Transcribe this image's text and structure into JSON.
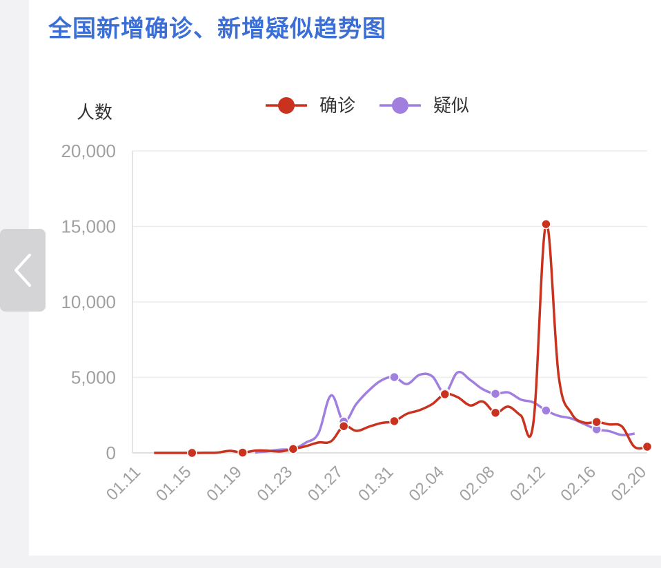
{
  "title": "全国新增确诊、新增疑似趋势图",
  "nav": {
    "prev_icon": "chevron-left-icon"
  },
  "chart_data": {
    "type": "line",
    "ylabel": "人数",
    "ylim": [
      0,
      20000
    ],
    "yticks": [
      0,
      5000,
      10000,
      15000,
      20000
    ],
    "ytick_labels": [
      "0",
      "5,000",
      "10,000",
      "15,000",
      "20,000"
    ],
    "xtick_labels": [
      "01.11",
      "01.15",
      "01.19",
      "01.23",
      "01.27",
      "01.31",
      "02.04",
      "02.08",
      "02.12",
      "02.16",
      "02.20"
    ],
    "legend_position": "top-center",
    "grid": true,
    "series": [
      {
        "name": "确诊",
        "color": "#c8321e",
        "x": [
          "01.12",
          "01.13",
          "01.14",
          "01.15",
          "01.16",
          "01.17",
          "01.18",
          "01.19",
          "01.20",
          "01.21",
          "01.22",
          "01.23",
          "01.24",
          "01.25",
          "01.26",
          "01.27",
          "01.28",
          "01.29",
          "01.30",
          "01.31",
          "02.01",
          "02.02",
          "02.03",
          "02.04",
          "02.05",
          "02.06",
          "02.07",
          "02.08",
          "02.09",
          "02.10",
          "02.11",
          "02.12",
          "02.13",
          "02.14",
          "02.15",
          "02.16",
          "02.17",
          "02.18",
          "02.19",
          "02.20"
        ],
        "values": [
          0,
          0,
          0,
          0,
          4,
          17,
          136,
          19,
          151,
          140,
          97,
          259,
          444,
          688,
          769,
          1771,
          1459,
          1737,
          1982,
          2102,
          2590,
          2829,
          3235,
          3887,
          3694,
          3143,
          3399,
          2656,
          3062,
          2478,
          2015,
          15152,
          5090,
          2641,
          2009,
          2048,
          1886,
          1749,
          394,
          411
        ],
        "markers": [
          "01.15",
          "01.19",
          "01.23",
          "01.27",
          "01.31",
          "02.04",
          "02.08",
          "02.12",
          "02.16",
          "02.20"
        ]
      },
      {
        "name": "疑似",
        "color": "#a07fdf",
        "x": [
          "01.20",
          "01.21",
          "01.22",
          "01.23",
          "01.24",
          "01.25",
          "01.26",
          "01.27",
          "01.28",
          "01.29",
          "01.30",
          "01.31",
          "02.01",
          "02.02",
          "02.03",
          "02.04",
          "02.05",
          "02.06",
          "02.07",
          "02.08",
          "02.09",
          "02.10",
          "02.11",
          "02.12",
          "02.13",
          "02.14",
          "02.15",
          "02.16",
          "02.17",
          "02.18",
          "02.19"
        ],
        "values": [
          27,
          109,
          221,
          257,
          680,
          1309,
          3806,
          2077,
          3248,
          4148,
          4812,
          5019,
          4562,
          5173,
          5072,
          3971,
          5328,
          4833,
          4214,
          3916,
          4008,
          3536,
          3342,
          2807,
          2450,
          2277,
          1918,
          1563,
          1432,
          1185,
          1277
        ],
        "markers": [
          "01.23",
          "01.27",
          "01.31",
          "02.04",
          "02.08",
          "02.12",
          "02.16"
        ]
      }
    ]
  }
}
